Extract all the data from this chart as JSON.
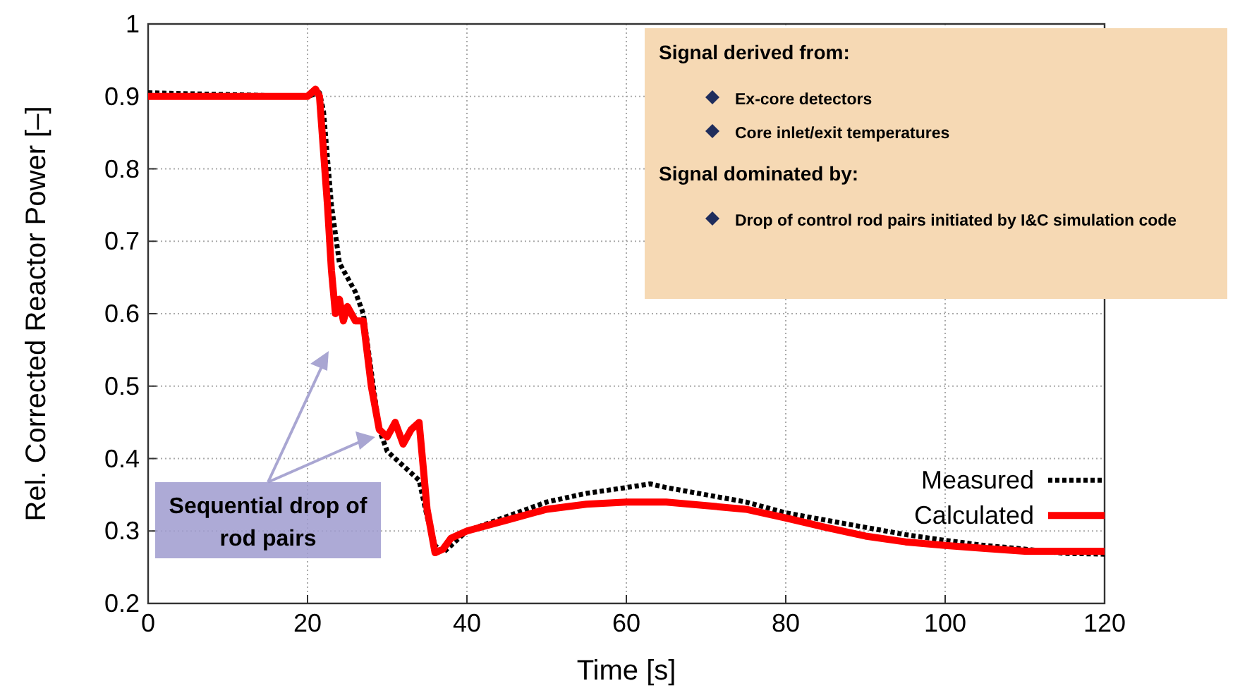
{
  "chart_data": {
    "type": "line",
    "xlabel": "Time [s]",
    "ylabel": "Rel. Corrected Reactor Power [–]",
    "xlim": [
      0,
      120
    ],
    "xticks": [
      0,
      20,
      40,
      60,
      80,
      100,
      120
    ],
    "ylim": [
      0.2,
      1
    ],
    "yticks": [
      0.2,
      0.3,
      0.4,
      0.5,
      0.6,
      0.7,
      0.8,
      0.9,
      1
    ],
    "grid": true,
    "legend": "right",
    "series": [
      {
        "name": "Measured",
        "color": "#000000",
        "line_style": "dotted",
        "x": [
          0,
          20,
          21.5,
          22,
          23,
          24,
          25,
          26,
          27,
          28,
          29,
          30,
          31,
          32,
          33,
          34,
          35,
          36,
          37,
          38,
          40,
          45,
          50,
          55,
          60,
          63,
          65,
          70,
          75,
          80,
          85,
          90,
          95,
          100,
          105,
          110,
          115,
          120
        ],
        "values": [
          0.905,
          0.9,
          0.905,
          0.88,
          0.75,
          0.67,
          0.65,
          0.63,
          0.6,
          0.52,
          0.44,
          0.41,
          0.4,
          0.39,
          0.38,
          0.37,
          0.32,
          0.28,
          0.27,
          0.28,
          0.3,
          0.32,
          0.34,
          0.352,
          0.36,
          0.365,
          0.36,
          0.35,
          0.34,
          0.325,
          0.315,
          0.305,
          0.295,
          0.287,
          0.28,
          0.275,
          0.269,
          0.268
        ]
      },
      {
        "name": "Calculated",
        "color": "#ff0000",
        "line_style": "solid",
        "x": [
          0,
          20,
          21,
          21.5,
          22.5,
          23,
          23.5,
          24,
          24.5,
          25,
          26,
          27,
          28,
          29,
          30,
          31,
          32,
          33,
          34,
          35,
          36,
          37,
          38,
          40,
          45,
          50,
          55,
          60,
          65,
          70,
          75,
          80,
          85,
          90,
          95,
          100,
          105,
          110,
          120
        ],
        "values": [
          0.9,
          0.9,
          0.91,
          0.9,
          0.75,
          0.66,
          0.6,
          0.62,
          0.59,
          0.61,
          0.59,
          0.59,
          0.5,
          0.44,
          0.43,
          0.45,
          0.42,
          0.44,
          0.45,
          0.33,
          0.27,
          0.275,
          0.29,
          0.3,
          0.315,
          0.33,
          0.337,
          0.34,
          0.34,
          0.335,
          0.33,
          0.318,
          0.305,
          0.293,
          0.285,
          0.28,
          0.276,
          0.272,
          0.272
        ]
      }
    ],
    "annotations": [
      "Signal derived from:",
      "Ex-core detectors",
      "Core inlet/exit temperatures",
      "Signal dominated by:",
      "Drop of control rod pairs initiated by I&C simulation code",
      "Sequential drop of rod pairs"
    ]
  }
}
